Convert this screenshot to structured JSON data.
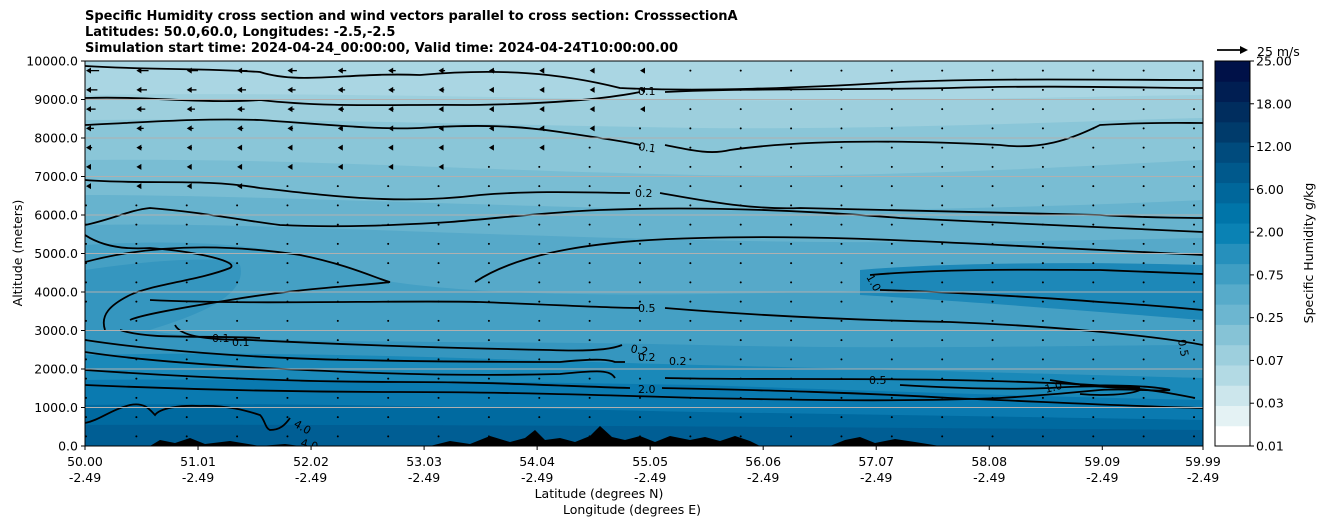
{
  "title_lines": [
    "Specific Humidity cross section and wind vectors parallel to cross section: CrosssectionA",
    "Latitudes: 50.0,60.0, Longitudes: -2.5,-2.5",
    "Simulation start time: 2024-04-24_00:00:00, Valid time: 2024-04-24T10:00:00.00"
  ],
  "chart_data": {
    "type": "heatmap",
    "ylabel": "Altitude (meters)",
    "xlabel_lat": "Latitude (degrees N)",
    "xlabel_lon": "Longitude (degrees E)",
    "ylim": [
      0,
      10000
    ],
    "xlim": [
      50.0,
      59.99
    ],
    "yticks": [
      0,
      1000,
      2000,
      3000,
      4000,
      5000,
      6000,
      7000,
      8000,
      9000,
      10000
    ],
    "ytick_labels": [
      "0.0",
      "1000.0",
      "2000.0",
      "3000.0",
      "4000.0",
      "5000.0",
      "6000.0",
      "7000.0",
      "8000.0",
      "9000.0",
      "10000.0"
    ],
    "xticks_lat": [
      "50.00",
      "51.01",
      "52.02",
      "53.03",
      "54.04",
      "55.05",
      "56.06",
      "57.07",
      "58.08",
      "59.09",
      "59.99"
    ],
    "xticks_lat_values": [
      50.0,
      51.01,
      52.02,
      53.03,
      54.04,
      55.05,
      56.06,
      57.07,
      58.08,
      59.09,
      59.99
    ],
    "xticks_lon": [
      "-2.49",
      "-2.49",
      "-2.49",
      "-2.49",
      "-2.49",
      "-2.49",
      "-2.49",
      "-2.49",
      "-2.49",
      "-2.49",
      "-2.49"
    ],
    "grid": "horizontal",
    "colorbar": {
      "label": "Specific Humidity g/kg",
      "levels": [
        "0.01",
        "0.03",
        "0.07",
        "0.25",
        "0.75",
        "2.00",
        "6.00",
        "12.00",
        "18.00",
        "25.00"
      ],
      "colors": [
        "#ffffff",
        "#e4f2f4",
        "#cce6ec",
        "#b3dae4",
        "#9dcfdd",
        "#86c3d6",
        "#6cb6d0",
        "#57abca",
        "#3f9ec3",
        "#2690bc",
        "#0a82b4",
        "#0075a9",
        "#00679b",
        "#00598c",
        "#004b7d",
        "#003b6b",
        "#002d5e",
        "#001e52",
        "#001148"
      ]
    },
    "quiver_key": "25 m/s",
    "contour_labels": [
      "0.1",
      "0.1",
      "0.2",
      "0.5",
      "1.0",
      "0.5",
      "2.0",
      "4.0",
      "0.1",
      "0.2",
      "0.2",
      "0.2",
      "0.5",
      "0.1",
      "1.0",
      "4.0"
    ],
    "humidity_bands_gkg": [
      {
        "altitude_m": 9500,
        "value": 0.07
      },
      {
        "altitude_m": 8500,
        "value": 0.1
      },
      {
        "altitude_m": 7500,
        "value": 0.15
      },
      {
        "altitude_m": 6500,
        "value": 0.2
      },
      {
        "altitude_m": 5500,
        "value": 0.3
      },
      {
        "altitude_m": 4300,
        "value": 0.6
      },
      {
        "altitude_m": 3000,
        "value": 0.5
      },
      {
        "altitude_m": 2000,
        "value": 1.0
      },
      {
        "altitude_m": 1000,
        "value": 4.0
      },
      {
        "altitude_m": 300,
        "value": 6.0
      }
    ]
  }
}
